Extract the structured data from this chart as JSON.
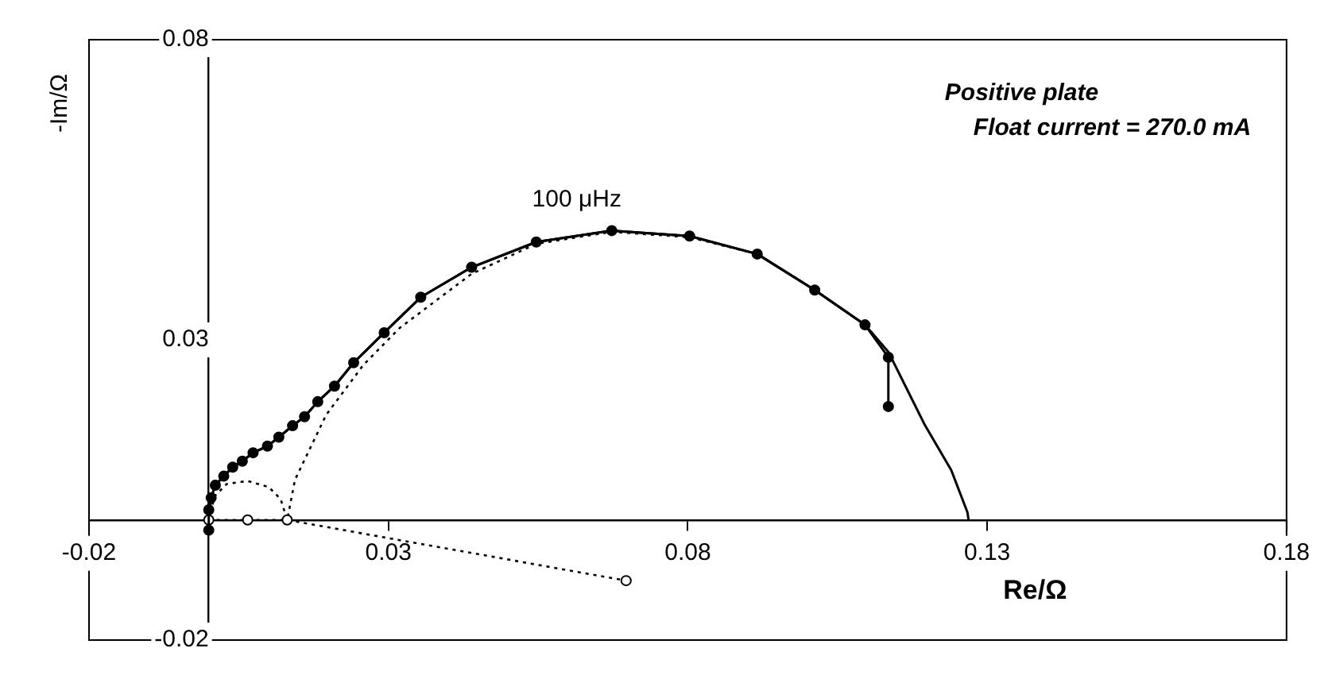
{
  "chart_data": {
    "type": "line",
    "xlabel": "Re/Ω",
    "ylabel": "-Im/Ω",
    "xlim": [
      -0.02,
      0.18
    ],
    "xticks": [
      -0.02,
      0.03,
      0.08,
      0.13,
      0.18
    ],
    "ylim": [
      -0.02,
      0.08
    ],
    "yticks": [
      -0.02,
      0.03,
      0.08
    ],
    "grid": false,
    "annotations": [
      "Positive plate",
      "Float current = 270.0 mA",
      {
        "text": "100 μHz",
        "x": 0.0673,
        "y": 0.0482
      }
    ],
    "series": [
      {
        "type": "line",
        "color": "#000000",
        "marker": "circle",
        "line_style": "solid",
        "x": [
          0,
          0,
          0.0004,
          0.0011,
          0.0025,
          0.004,
          0.0056,
          0.0074,
          0.0098,
          0.0117,
          0.014,
          0.016,
          0.0182,
          0.021,
          0.0242,
          0.0293,
          0.0354,
          0.0439,
          0.0547,
          0.0673,
          0.0803,
          0.0916,
          0.1012,
          0.1096,
          0.1135,
          0.1135
        ],
        "values": [
          -0.0017,
          0.0017,
          0.0037,
          0.0058,
          0.0073,
          0.0088,
          0.0098,
          0.0112,
          0.0123,
          0.0138,
          0.0157,
          0.0172,
          0.0197,
          0.0223,
          0.0262,
          0.0312,
          0.0371,
          0.0421,
          0.0463,
          0.0482,
          0.0473,
          0.0443,
          0.0383,
          0.0325,
          0.0271,
          0.0189
        ]
      },
      {
        "type": "line",
        "color": "#000000",
        "marker": "none",
        "line_style": "solid",
        "x": [
          0,
          0.0004,
          0.0011,
          0.0025,
          0.004,
          0.0056,
          0.0074,
          0.0098,
          0.0117,
          0.014,
          0.016,
          0.0182,
          0.021,
          0.0242,
          0.0293,
          0.0354,
          0.0439,
          0.0547,
          0.0673,
          0.0803,
          0.0916,
          0.1012,
          0.1096,
          0.1135,
          0.1196,
          0.124,
          0.1267,
          0.1269
        ],
        "values": [
          0,
          0.0037,
          0.0058,
          0.0073,
          0.0088,
          0.0098,
          0.0112,
          0.0123,
          0.0138,
          0.0157,
          0.0172,
          0.0197,
          0.0223,
          0.0262,
          0.0312,
          0.0371,
          0.0421,
          0.0463,
          0.0482,
          0.0473,
          0.0443,
          0.0383,
          0.0325,
          0.028,
          0.0158,
          0.0083,
          0.0013,
          0
        ]
      },
      {
        "type": "line",
        "color": "#000000",
        "marker": "none",
        "line_style": "dotted",
        "x": [
          0,
          0.001,
          0.003,
          0.0065,
          0.01,
          0.012,
          0.0131,
          0.0144,
          0.0196,
          0.0258,
          0.0319,
          0.0439,
          0.0547,
          0.0673,
          0.0803,
          0.0916,
          0.1012,
          0.1096,
          0.1135
        ],
        "values": [
          0,
          0.004,
          0.006,
          0.0065,
          0.0055,
          0.0035,
          0,
          0.0067,
          0.0175,
          0.0258,
          0.032,
          0.041,
          0.046,
          0.048,
          0.0471,
          0.0443,
          0.0383,
          0.0325,
          0.028
        ]
      },
      {
        "type": "line",
        "color": "#000000",
        "marker": "circle",
        "line_style": "dotted",
        "x": [
          0,
          0.0065,
          0.0131,
          0.0697
        ],
        "values": [
          0,
          0,
          0,
          -0.0101
        ]
      }
    ]
  }
}
